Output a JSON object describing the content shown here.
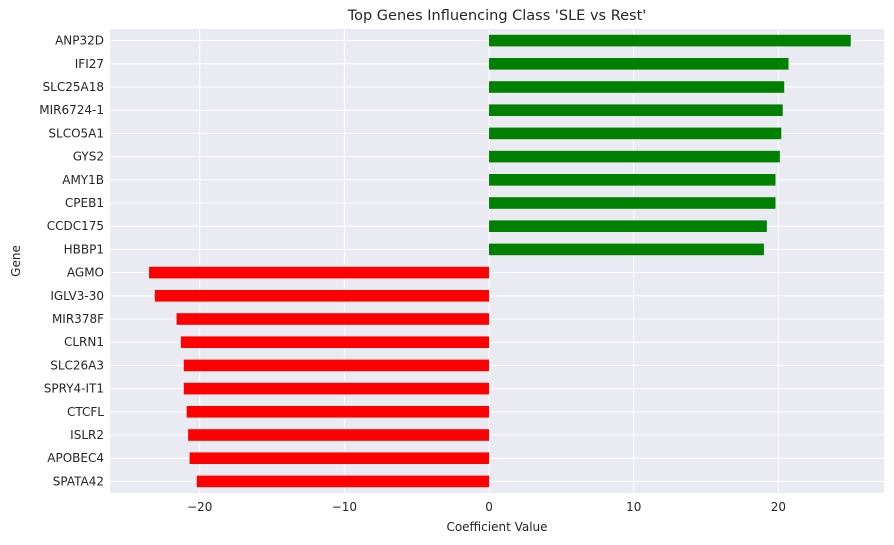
{
  "chart_data": {
    "type": "bar",
    "orientation": "horizontal",
    "title": "Top Genes Influencing Class 'SLE vs Rest'",
    "xlabel": "Coefficient Value",
    "ylabel": "Gene",
    "xlim": [
      -26.2,
      27.3
    ],
    "xticks": [
      -20,
      -10,
      0,
      10,
      20
    ],
    "xtick_labels": [
      "−20",
      "−10",
      "0",
      "10",
      "20"
    ],
    "grid": true,
    "legend": "none",
    "background_color": "#eaeaf2",
    "positive_color": "#008000",
    "negative_color": "#ff0000",
    "categories": [
      "ANP32D",
      "IFI27",
      "SLC25A18",
      "MIR6724-1",
      "SLCO5A1",
      "GYS2",
      "AMY1B",
      "CPEB1",
      "CCDC175",
      "HBBP1",
      "AGMO",
      "IGLV3-30",
      "MIR378F",
      "CLRN1",
      "SLC26A3",
      "SPRY4-IT1",
      "CTCFL",
      "ISLR2",
      "APOBEC4",
      "SPATA42"
    ],
    "values": [
      25.0,
      20.7,
      20.4,
      20.3,
      20.2,
      20.1,
      19.8,
      19.8,
      19.2,
      19.0,
      -23.5,
      -23.1,
      -21.6,
      -21.3,
      -21.1,
      -21.1,
      -20.9,
      -20.8,
      -20.7,
      -20.2
    ]
  }
}
